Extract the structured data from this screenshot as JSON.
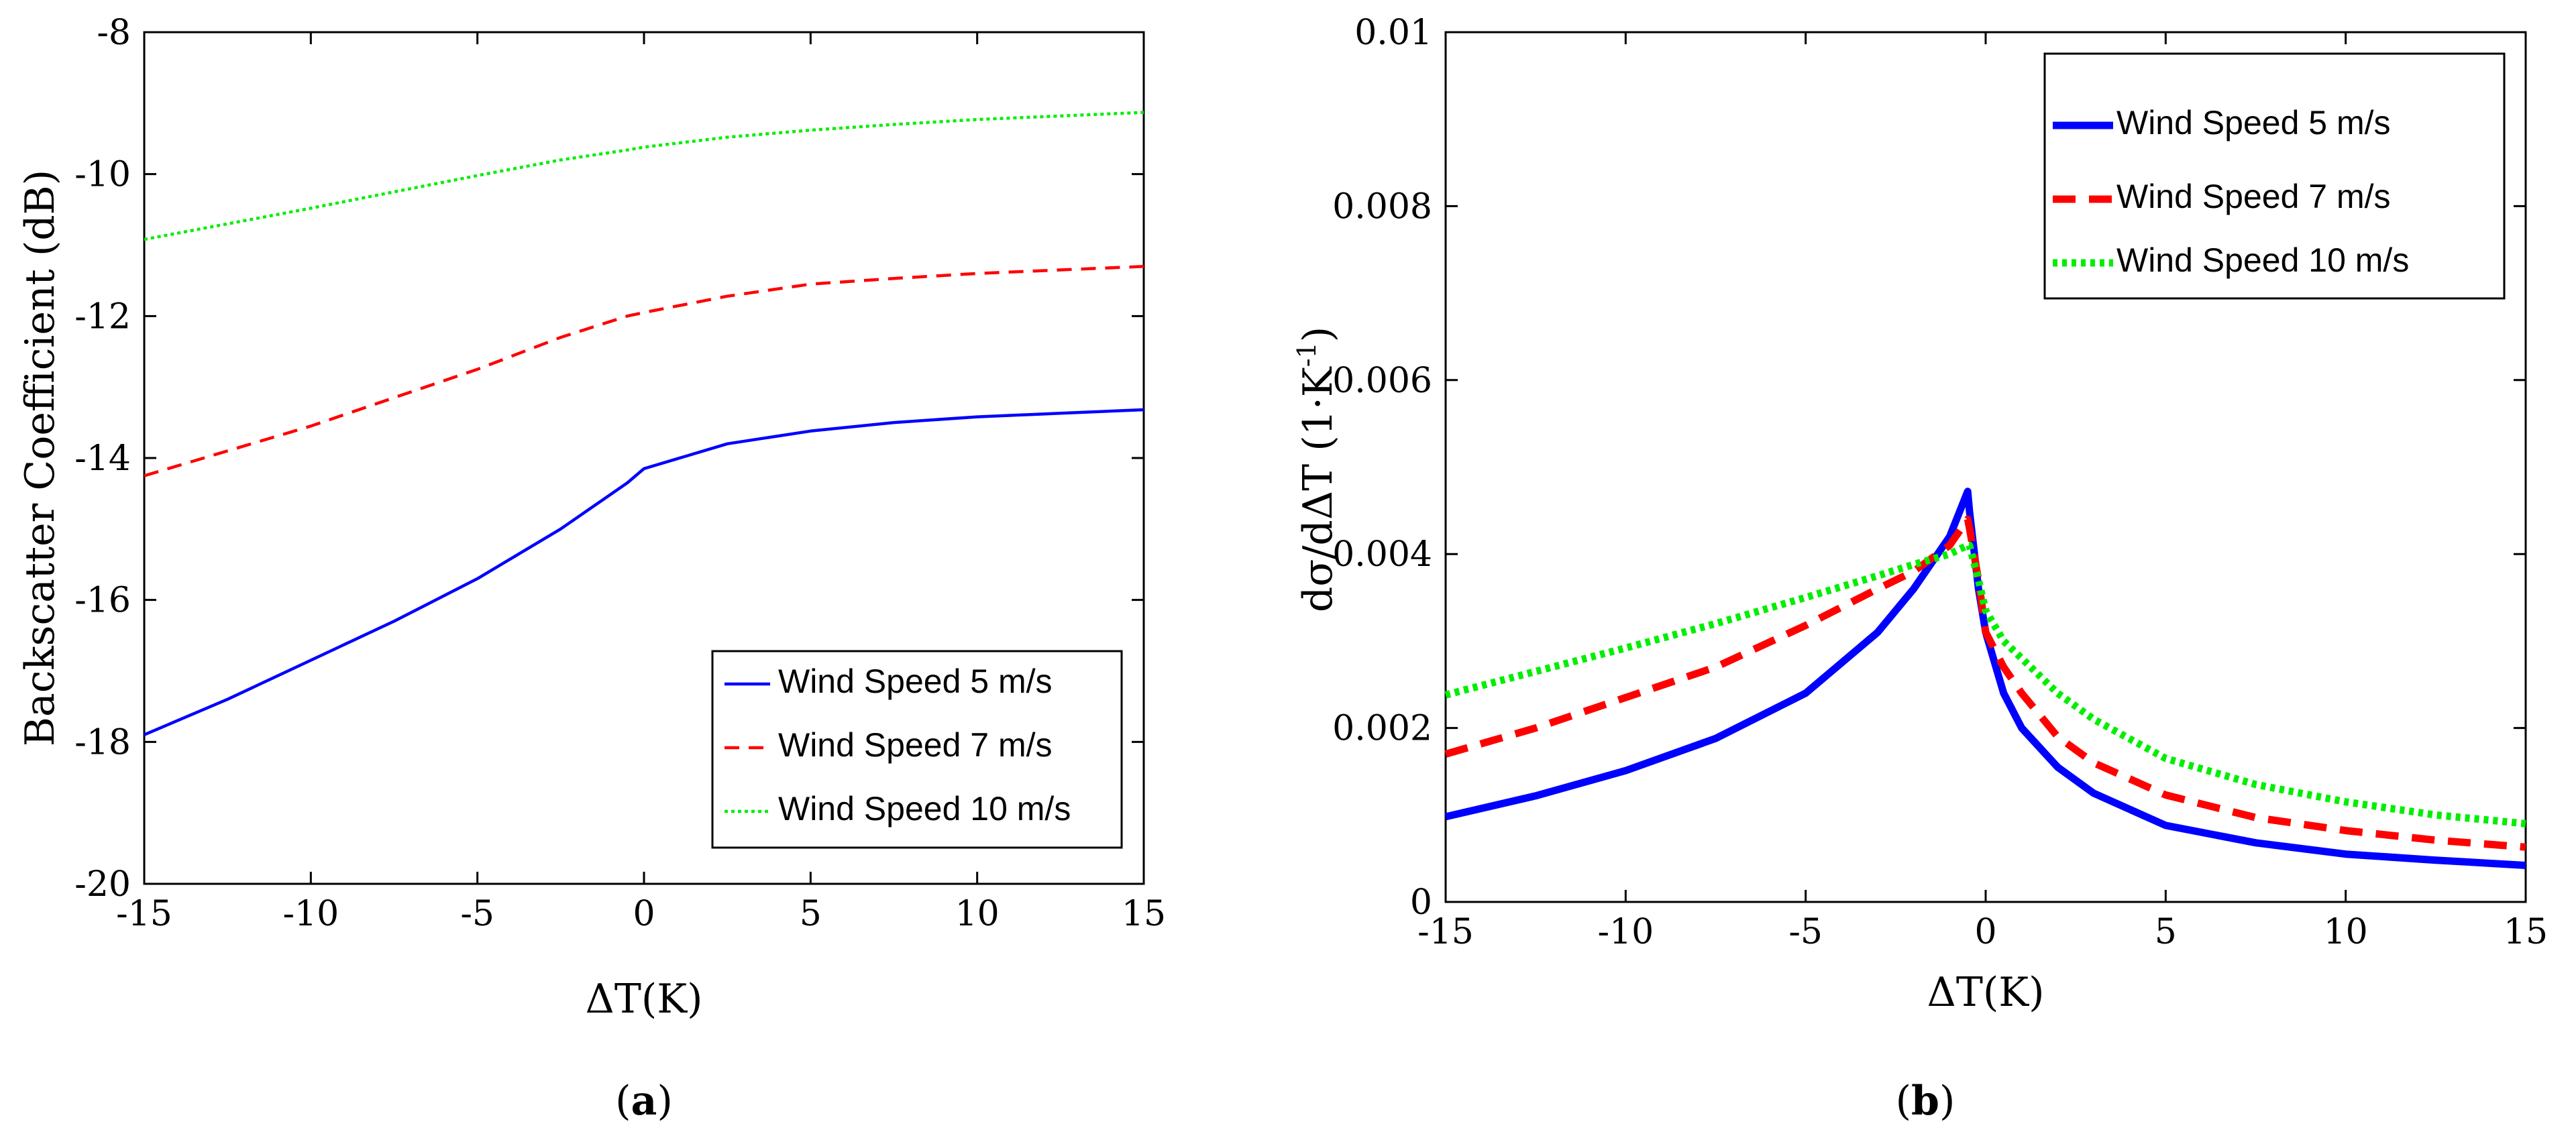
{
  "chart_data": [
    {
      "type": "line",
      "panel_label": "(a)",
      "panel_letter": "a",
      "xlabel": "ΔT(K)",
      "ylabel": "Backscatter Coefficient (dB)",
      "xlim": [
        -15,
        15
      ],
      "ylim": [
        -20,
        -8
      ],
      "xticks": [
        "-15",
        "-10",
        "-5",
        "0",
        "5",
        "10",
        "15"
      ],
      "yticks": [
        "-20",
        "-18",
        "-16",
        "-14",
        "-12",
        "-10",
        "-8"
      ],
      "grid": false,
      "legend_position": "bottom-right",
      "x": [
        -15,
        -12.5,
        -10,
        -7.5,
        -5,
        -2.5,
        -0.5,
        0,
        2.5,
        5,
        7.5,
        10,
        12.5,
        15
      ],
      "series": [
        {
          "name": "Wind Speed 5 m/s",
          "color": "#0000ff",
          "style": "solid",
          "values": [
            -17.9,
            -17.4,
            -16.85,
            -16.3,
            -15.7,
            -15.0,
            -14.35,
            -14.15,
            -13.8,
            -13.62,
            -13.5,
            -13.42,
            -13.37,
            -13.32
          ]
        },
        {
          "name": "Wind Speed 7 m/s",
          "color": "#ff0000",
          "style": "dashed",
          "values": [
            -14.25,
            -13.9,
            -13.55,
            -13.15,
            -12.75,
            -12.3,
            -12.0,
            -11.95,
            -11.72,
            -11.55,
            -11.47,
            -11.4,
            -11.35,
            -11.3
          ]
        },
        {
          "name": "Wind Speed 10 m/s",
          "color": "#00ee00",
          "style": "dotted",
          "values": [
            -10.92,
            -10.7,
            -10.48,
            -10.25,
            -10.02,
            -9.8,
            -9.66,
            -9.62,
            -9.48,
            -9.38,
            -9.3,
            -9.23,
            -9.18,
            -9.13
          ]
        }
      ]
    },
    {
      "type": "line",
      "panel_label": "(b)",
      "panel_letter": "b",
      "xlabel": "ΔT(K)",
      "ylabel_main": "dσ/dΔT (1·K",
      "ylabel_sup": "-1",
      "ylabel_close": ")",
      "xlim": [
        -15,
        15
      ],
      "ylim": [
        0,
        0.01
      ],
      "xticks": [
        "-15",
        "-10",
        "-5",
        "0",
        "5",
        "10",
        "15"
      ],
      "yticks": [
        "0",
        "0.002",
        "0.004",
        "0.006",
        "0.008",
        "0.01"
      ],
      "grid": false,
      "legend_position": "top-right",
      "series": [
        {
          "name": "Wind Speed 5 m/s",
          "color": "#0000ff",
          "style": "solid",
          "x": [
            -15,
            -12.5,
            -10,
            -7.5,
            -5,
            -3,
            -2,
            -1,
            -0.5,
            -0.45,
            -0.2,
            0,
            0.5,
            1,
            2,
            3,
            5,
            7.5,
            10,
            12.5,
            15
          ],
          "y": [
            0.00098,
            0.00122,
            0.00151,
            0.00188,
            0.0024,
            0.0031,
            0.0036,
            0.0042,
            0.00472,
            0.0045,
            0.0036,
            0.0031,
            0.0024,
            0.002,
            0.00155,
            0.00125,
            0.00088,
            0.00068,
            0.00055,
            0.00048,
            0.00042
          ]
        },
        {
          "name": "Wind Speed 7 m/s",
          "color": "#ff0000",
          "style": "dashed",
          "x": [
            -15,
            -12.5,
            -10,
            -7.5,
            -5,
            -3,
            -2,
            -1,
            -0.5,
            -0.45,
            -0.2,
            0,
            0.5,
            1,
            2,
            3,
            5,
            7.5,
            10,
            12.5,
            15
          ],
          "y": [
            0.0017,
            0.002,
            0.00235,
            0.0027,
            0.00318,
            0.0036,
            0.0038,
            0.0041,
            0.0044,
            0.0043,
            0.0037,
            0.0031,
            0.0027,
            0.0024,
            0.0019,
            0.0016,
            0.00123,
            0.00097,
            0.00082,
            0.00071,
            0.00063
          ]
        },
        {
          "name": "Wind Speed 10 m/s",
          "color": "#00ee00",
          "style": "dotted",
          "x": [
            -15,
            -12.5,
            -10,
            -7.5,
            -5,
            -3,
            -2,
            -1,
            -0.5,
            -0.45,
            -0.2,
            0,
            0.5,
            1,
            2,
            3,
            5,
            7.5,
            10,
            12.5,
            15
          ],
          "y": [
            0.00238,
            0.00265,
            0.00292,
            0.0032,
            0.0035,
            0.00375,
            0.00388,
            0.004,
            0.0041,
            0.0041,
            0.0037,
            0.00335,
            0.003,
            0.0028,
            0.0024,
            0.0021,
            0.00165,
            0.00135,
            0.00115,
            0.001,
            0.0009
          ]
        }
      ]
    }
  ]
}
